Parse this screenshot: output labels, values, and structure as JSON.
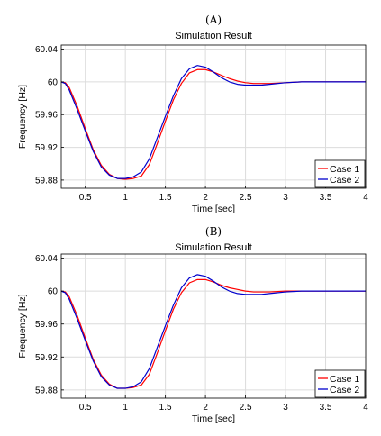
{
  "chart_data": [
    {
      "type": "line",
      "panel_label": "(A)",
      "title": "Simulation Result",
      "xlabel": "Time [sec]",
      "ylabel": "Frequency [Hz]",
      "xlim": [
        0.2,
        4
      ],
      "ylim": [
        59.87,
        60.045
      ],
      "xticks": [
        0.5,
        1,
        1.5,
        2,
        2.5,
        3,
        3.5,
        4
      ],
      "xtick_labels": [
        "0.5",
        "1",
        "1.5",
        "2",
        "2.5",
        "3",
        "3.5",
        "4"
      ],
      "yticks": [
        59.88,
        59.92,
        59.96,
        60,
        60.04
      ],
      "ytick_labels": [
        "59.88",
        "59.92",
        "59.96",
        "60",
        "60.04"
      ],
      "grid": true,
      "legend_position": "bottom-right",
      "series": [
        {
          "name": "Case 1",
          "color": "#ff0000",
          "x": [
            0.2,
            0.25,
            0.3,
            0.4,
            0.5,
            0.6,
            0.7,
            0.8,
            0.9,
            1.0,
            1.1,
            1.2,
            1.3,
            1.4,
            1.5,
            1.6,
            1.7,
            1.8,
            1.9,
            2.0,
            2.1,
            2.2,
            2.3,
            2.4,
            2.5,
            2.6,
            2.7,
            2.8,
            3.0,
            3.2,
            3.5,
            3.8,
            4.0
          ],
          "y": [
            60.0,
            59.999,
            59.993,
            59.97,
            59.943,
            59.917,
            59.898,
            59.887,
            59.882,
            59.881,
            59.882,
            59.885,
            59.899,
            59.925,
            59.952,
            59.978,
            59.998,
            60.011,
            60.015,
            60.015,
            60.012,
            60.008,
            60.004,
            60.001,
            59.999,
            59.998,
            59.998,
            59.998,
            59.999,
            60.0,
            60.0,
            60.0,
            60.0
          ]
        },
        {
          "name": "Case 2",
          "color": "#0000cc",
          "x": [
            0.2,
            0.25,
            0.3,
            0.4,
            0.5,
            0.6,
            0.7,
            0.8,
            0.9,
            1.0,
            1.1,
            1.2,
            1.3,
            1.4,
            1.5,
            1.6,
            1.7,
            1.8,
            1.9,
            2.0,
            2.1,
            2.2,
            2.3,
            2.4,
            2.5,
            2.6,
            2.7,
            2.8,
            3.0,
            3.2,
            3.5,
            3.8,
            4.0
          ],
          "y": [
            60.0,
            59.998,
            59.99,
            59.966,
            59.94,
            59.915,
            59.896,
            59.886,
            59.882,
            59.882,
            59.884,
            59.89,
            59.906,
            59.932,
            59.958,
            59.983,
            60.004,
            60.016,
            60.02,
            60.018,
            60.012,
            60.005,
            60.0,
            59.997,
            59.996,
            59.996,
            59.996,
            59.997,
            59.999,
            60.0,
            60.0,
            60.0,
            60.0
          ]
        }
      ]
    },
    {
      "type": "line",
      "panel_label": "(B)",
      "title": "Simulation Result",
      "xlabel": "Time [sec]",
      "ylabel": "Frequency [Hz]",
      "xlim": [
        0.2,
        4
      ],
      "ylim": [
        59.87,
        60.045
      ],
      "xticks": [
        0.5,
        1,
        1.5,
        2,
        2.5,
        3,
        3.5,
        4
      ],
      "xtick_labels": [
        "0.5",
        "1",
        "1.5",
        "2",
        "2.5",
        "3",
        "3.5",
        "4"
      ],
      "yticks": [
        59.88,
        59.92,
        59.96,
        60,
        60.04
      ],
      "ytick_labels": [
        "59.88",
        "59.92",
        "59.96",
        "60",
        "60.04"
      ],
      "grid": true,
      "legend_position": "bottom-right",
      "series": [
        {
          "name": "Case 1",
          "color": "#ff0000",
          "x": [
            0.2,
            0.25,
            0.3,
            0.4,
            0.5,
            0.6,
            0.7,
            0.8,
            0.9,
            1.0,
            1.1,
            1.2,
            1.3,
            1.4,
            1.5,
            1.6,
            1.7,
            1.8,
            1.9,
            2.0,
            2.1,
            2.2,
            2.3,
            2.4,
            2.5,
            2.6,
            2.7,
            2.8,
            3.0,
            3.2,
            3.5,
            3.8,
            4.0
          ],
          "y": [
            60.0,
            59.999,
            59.993,
            59.97,
            59.943,
            59.917,
            59.898,
            59.887,
            59.882,
            59.882,
            59.883,
            59.886,
            59.899,
            59.925,
            59.952,
            59.978,
            59.998,
            60.01,
            60.014,
            60.014,
            60.011,
            60.007,
            60.004,
            60.002,
            60.0,
            59.999,
            59.999,
            59.999,
            60.0,
            60.0,
            60.0,
            60.0,
            60.0
          ]
        },
        {
          "name": "Case 2",
          "color": "#0000cc",
          "x": [
            0.2,
            0.25,
            0.3,
            0.4,
            0.5,
            0.6,
            0.7,
            0.8,
            0.9,
            1.0,
            1.1,
            1.2,
            1.3,
            1.4,
            1.5,
            1.6,
            1.7,
            1.8,
            1.9,
            2.0,
            2.1,
            2.2,
            2.3,
            2.4,
            2.5,
            2.6,
            2.7,
            2.8,
            3.0,
            3.2,
            3.5,
            3.8,
            4.0
          ],
          "y": [
            60.0,
            59.998,
            59.99,
            59.966,
            59.94,
            59.915,
            59.896,
            59.886,
            59.882,
            59.882,
            59.884,
            59.89,
            59.906,
            59.932,
            59.958,
            59.983,
            60.004,
            60.016,
            60.02,
            60.018,
            60.012,
            60.005,
            60.0,
            59.997,
            59.996,
            59.996,
            59.996,
            59.997,
            59.999,
            60.0,
            60.0,
            60.0,
            60.0
          ]
        }
      ]
    }
  ]
}
